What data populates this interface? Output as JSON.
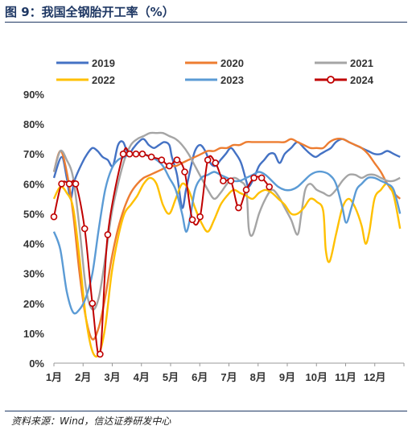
{
  "figure": {
    "title": "图 9：我国全钢胎开工率（%）",
    "source": "资料来源：Wind，信达证券研发中心"
  },
  "chart_data": {
    "type": "line",
    "ylim": [
      0,
      90
    ],
    "yticks": [
      "0%",
      "10%",
      "20%",
      "30%",
      "40%",
      "50%",
      "60%",
      "70%",
      "80%",
      "90%"
    ],
    "xticks": [
      "1月",
      "2月",
      "3月",
      "4月",
      "5月",
      "6月",
      "7月",
      "8月",
      "9月",
      "10月",
      "11月",
      "12月"
    ],
    "x_unit": "week",
    "grid": false,
    "legend": "top",
    "series": [
      {
        "name": "2019",
        "color": "#4472c4",
        "marker": false,
        "points": [
          [
            1,
            62
          ],
          [
            1.6,
            69
          ],
          [
            2,
            62
          ],
          [
            2.3,
            55
          ],
          [
            2.6,
            61
          ],
          [
            3.2,
            67
          ],
          [
            3.6,
            70
          ],
          [
            4,
            72
          ],
          [
            4.4,
            71
          ],
          [
            4.8,
            69
          ],
          [
            5.2,
            68
          ],
          [
            5.6,
            66
          ],
          [
            6,
            73
          ],
          [
            6.4,
            74
          ],
          [
            6.8,
            70
          ],
          [
            7.2,
            72
          ],
          [
            7.6,
            74
          ],
          [
            8,
            75
          ],
          [
            8.4,
            73
          ],
          [
            8.8,
            72
          ],
          [
            9.2,
            73
          ],
          [
            9.6,
            74
          ],
          [
            10,
            73
          ],
          [
            10.2,
            69
          ],
          [
            10.6,
            63
          ],
          [
            11,
            52
          ],
          [
            11.3,
            58
          ],
          [
            11.7,
            66
          ],
          [
            12,
            71
          ],
          [
            12.4,
            73
          ],
          [
            12.8,
            71
          ],
          [
            13.2,
            67
          ],
          [
            13.6,
            66
          ],
          [
            14,
            68
          ],
          [
            14.4,
            70
          ],
          [
            14.8,
            72
          ],
          [
            15.2,
            70
          ],
          [
            15.6,
            67
          ],
          [
            16,
            61
          ],
          [
            16.2,
            59
          ],
          [
            16.6,
            62
          ],
          [
            17,
            66
          ],
          [
            17.4,
            68
          ],
          [
            17.8,
            70
          ],
          [
            18.2,
            70
          ],
          [
            18.6,
            67
          ],
          [
            19,
            70
          ],
          [
            19.5,
            72
          ],
          [
            20,
            74
          ],
          [
            20.5,
            72
          ],
          [
            21,
            70
          ],
          [
            21.4,
            69
          ],
          [
            21.8,
            70
          ],
          [
            22.2,
            71
          ],
          [
            22.6,
            72
          ],
          [
            23,
            74
          ],
          [
            23.5,
            75
          ],
          [
            24,
            74
          ],
          [
            24.5,
            73
          ],
          [
            25,
            72
          ],
          [
            25.5,
            71
          ],
          [
            26,
            70
          ],
          [
            26.5,
            70
          ],
          [
            27,
            71
          ],
          [
            27.5,
            70
          ],
          [
            28,
            69
          ]
        ]
      },
      {
        "name": "2020",
        "color": "#ed7d31",
        "marker": false,
        "points": [
          [
            1,
            64
          ],
          [
            1.5,
            71
          ],
          [
            2,
            64
          ],
          [
            2.5,
            50
          ],
          [
            3,
            30
          ],
          [
            3.5,
            15
          ],
          [
            4,
            8
          ],
          [
            4.5,
            12
          ],
          [
            5,
            22
          ],
          [
            5.5,
            35
          ],
          [
            6,
            45
          ],
          [
            6.5,
            52
          ],
          [
            7,
            57
          ],
          [
            7.5,
            60
          ],
          [
            8,
            62
          ],
          [
            8.5,
            63
          ],
          [
            9,
            64
          ],
          [
            9.5,
            65
          ],
          [
            10,
            66
          ],
          [
            10.5,
            66
          ],
          [
            11,
            67
          ],
          [
            11.5,
            68
          ],
          [
            12,
            69
          ],
          [
            12.5,
            70
          ],
          [
            13,
            71
          ],
          [
            13.5,
            71
          ],
          [
            14,
            72
          ],
          [
            14.5,
            72
          ],
          [
            15,
            73
          ],
          [
            15.5,
            73
          ],
          [
            16,
            74
          ],
          [
            16.5,
            74
          ],
          [
            17,
            74
          ],
          [
            17.5,
            74
          ],
          [
            18,
            74
          ],
          [
            18.5,
            74
          ],
          [
            19,
            74
          ],
          [
            19.5,
            75
          ],
          [
            20,
            74
          ],
          [
            20.5,
            73
          ],
          [
            21,
            72
          ],
          [
            21.5,
            72
          ],
          [
            22,
            72
          ],
          [
            22.5,
            74
          ],
          [
            23,
            75
          ],
          [
            23.5,
            75
          ],
          [
            24,
            74
          ],
          [
            24.5,
            73
          ],
          [
            25,
            72
          ],
          [
            25.5,
            70
          ],
          [
            26,
            67
          ],
          [
            26.5,
            64
          ],
          [
            27,
            60
          ],
          [
            27.5,
            57
          ],
          [
            28,
            55
          ]
        ]
      },
      {
        "name": "2021",
        "color": "#a5a5a5",
        "marker": false,
        "points": [
          [
            1,
            64
          ],
          [
            1.5,
            71
          ],
          [
            2,
            68
          ],
          [
            2.5,
            62
          ],
          [
            3,
            45
          ],
          [
            3.5,
            25
          ],
          [
            4,
            18
          ],
          [
            4.5,
            22
          ],
          [
            5,
            35
          ],
          [
            5.5,
            50
          ],
          [
            6,
            60
          ],
          [
            6.5,
            68
          ],
          [
            7,
            73
          ],
          [
            7.5,
            75
          ],
          [
            8,
            76
          ],
          [
            8.5,
            77
          ],
          [
            9,
            77
          ],
          [
            9.5,
            77
          ],
          [
            10,
            76
          ],
          [
            10.5,
            75
          ],
          [
            11,
            73
          ],
          [
            11.5,
            70
          ],
          [
            12,
            66
          ],
          [
            12.5,
            62
          ],
          [
            13,
            58
          ],
          [
            13.5,
            55
          ],
          [
            14,
            57
          ],
          [
            14.5,
            60
          ],
          [
            15,
            62
          ],
          [
            15.5,
            61
          ],
          [
            16,
            58
          ],
          [
            16.2,
            45
          ],
          [
            16.5,
            43
          ],
          [
            17,
            50
          ],
          [
            17.5,
            55
          ],
          [
            18,
            58
          ],
          [
            18.5,
            56
          ],
          [
            19,
            52
          ],
          [
            19.5,
            48
          ],
          [
            20,
            43
          ],
          [
            20.3,
            50
          ],
          [
            20.6,
            58
          ],
          [
            21,
            60
          ],
          [
            21.5,
            58
          ],
          [
            22,
            57
          ],
          [
            22.5,
            56
          ],
          [
            23,
            58
          ],
          [
            23.5,
            61
          ],
          [
            24,
            63
          ],
          [
            24.5,
            63
          ],
          [
            25,
            62
          ],
          [
            25.5,
            63
          ],
          [
            26,
            63
          ],
          [
            26.5,
            62
          ],
          [
            27,
            61
          ],
          [
            27.5,
            61
          ],
          [
            28,
            62
          ]
        ]
      },
      {
        "name": "2022",
        "color": "#ffc000",
        "marker": false,
        "points": [
          [
            1,
            55
          ],
          [
            1.5,
            59
          ],
          [
            2,
            57
          ],
          [
            2.5,
            52
          ],
          [
            3,
            35
          ],
          [
            3.5,
            15
          ],
          [
            4,
            4
          ],
          [
            4.5,
            3
          ],
          [
            5,
            12
          ],
          [
            5.5,
            30
          ],
          [
            6,
            42
          ],
          [
            6.5,
            50
          ],
          [
            7,
            53
          ],
          [
            7.5,
            56
          ],
          [
            8,
            60
          ],
          [
            8.5,
            62
          ],
          [
            9,
            60
          ],
          [
            9.5,
            53
          ],
          [
            10,
            50
          ],
          [
            10.5,
            55
          ],
          [
            11,
            60
          ],
          [
            11.5,
            58
          ],
          [
            12,
            52
          ],
          [
            12.5,
            47
          ],
          [
            13,
            44
          ],
          [
            13.5,
            48
          ],
          [
            14,
            53
          ],
          [
            14.5,
            56
          ],
          [
            15,
            58
          ],
          [
            15.5,
            57
          ],
          [
            16,
            56
          ],
          [
            16.5,
            55
          ],
          [
            17,
            57
          ],
          [
            17.5,
            58
          ],
          [
            18,
            57
          ],
          [
            18.5,
            55
          ],
          [
            19,
            53
          ],
          [
            19.5,
            50
          ],
          [
            20,
            50
          ],
          [
            20.5,
            52
          ],
          [
            21,
            55
          ],
          [
            21.5,
            54
          ],
          [
            22,
            51
          ],
          [
            22.2,
            38
          ],
          [
            22.5,
            34
          ],
          [
            23,
            43
          ],
          [
            23.5,
            52
          ],
          [
            24,
            55
          ],
          [
            24.5,
            52
          ],
          [
            25,
            46
          ],
          [
            25.3,
            40
          ],
          [
            25.6,
            44
          ],
          [
            26,
            55
          ],
          [
            26.5,
            58
          ],
          [
            27,
            60
          ],
          [
            27.5,
            56
          ],
          [
            28,
            45
          ]
        ]
      },
      {
        "name": "2023",
        "color": "#5b9bd5",
        "marker": false,
        "points": [
          [
            1,
            44
          ],
          [
            1.5,
            38
          ],
          [
            2,
            24
          ],
          [
            2.5,
            17
          ],
          [
            3,
            18
          ],
          [
            3.5,
            22
          ],
          [
            4,
            30
          ],
          [
            4.5,
            45
          ],
          [
            5,
            58
          ],
          [
            5.5,
            65
          ],
          [
            6,
            68
          ],
          [
            6.5,
            69
          ],
          [
            7,
            70
          ],
          [
            7.5,
            70
          ],
          [
            8,
            70
          ],
          [
            8.5,
            69
          ],
          [
            9,
            68
          ],
          [
            9.5,
            66
          ],
          [
            10,
            62
          ],
          [
            10.5,
            58
          ],
          [
            11,
            50
          ],
          [
            11.3,
            44
          ],
          [
            11.6,
            48
          ],
          [
            12,
            58
          ],
          [
            12.5,
            62
          ],
          [
            13,
            63
          ],
          [
            13.5,
            64
          ],
          [
            14,
            63
          ],
          [
            14.5,
            62
          ],
          [
            15,
            61
          ],
          [
            15.5,
            61
          ],
          [
            16,
            62
          ],
          [
            16.5,
            63
          ],
          [
            17,
            64
          ],
          [
            17.5,
            63
          ],
          [
            18,
            61
          ],
          [
            18.5,
            59
          ],
          [
            19,
            58
          ],
          [
            19.5,
            58
          ],
          [
            20,
            59
          ],
          [
            20.5,
            61
          ],
          [
            21,
            63
          ],
          [
            21.5,
            64
          ],
          [
            22,
            64
          ],
          [
            22.5,
            63
          ],
          [
            23,
            60
          ],
          [
            23.5,
            52
          ],
          [
            23.8,
            47
          ],
          [
            24.2,
            52
          ],
          [
            24.6,
            58
          ],
          [
            25,
            60
          ],
          [
            25.5,
            62
          ],
          [
            26,
            62
          ],
          [
            26.5,
            61
          ],
          [
            27,
            60
          ],
          [
            27.5,
            58
          ],
          [
            28,
            50
          ]
        ]
      },
      {
        "name": "2024",
        "color": "#c00000",
        "marker": true,
        "points": [
          [
            1,
            49
          ],
          [
            1.6,
            60
          ],
          [
            2.2,
            60
          ],
          [
            2.7,
            60
          ],
          [
            3.4,
            45
          ],
          [
            4.0,
            20
          ],
          [
            4.6,
            3
          ],
          [
            5.2,
            43
          ],
          [
            6.4,
            70
          ],
          [
            6.9,
            70
          ],
          [
            7.4,
            70
          ],
          [
            7.9,
            70
          ],
          [
            8.6,
            69
          ],
          [
            9.4,
            68
          ],
          [
            10.0,
            66
          ],
          [
            10.6,
            68
          ],
          [
            11.2,
            64
          ],
          [
            11.8,
            48
          ],
          [
            12.4,
            49
          ],
          [
            13.0,
            68
          ],
          [
            13.6,
            67
          ],
          [
            14.2,
            61
          ],
          [
            14.8,
            61
          ],
          [
            15.4,
            52
          ],
          [
            16.0,
            58
          ],
          [
            16.6,
            62
          ],
          [
            17.2,
            62
          ],
          [
            17.8,
            59
          ]
        ]
      }
    ]
  }
}
